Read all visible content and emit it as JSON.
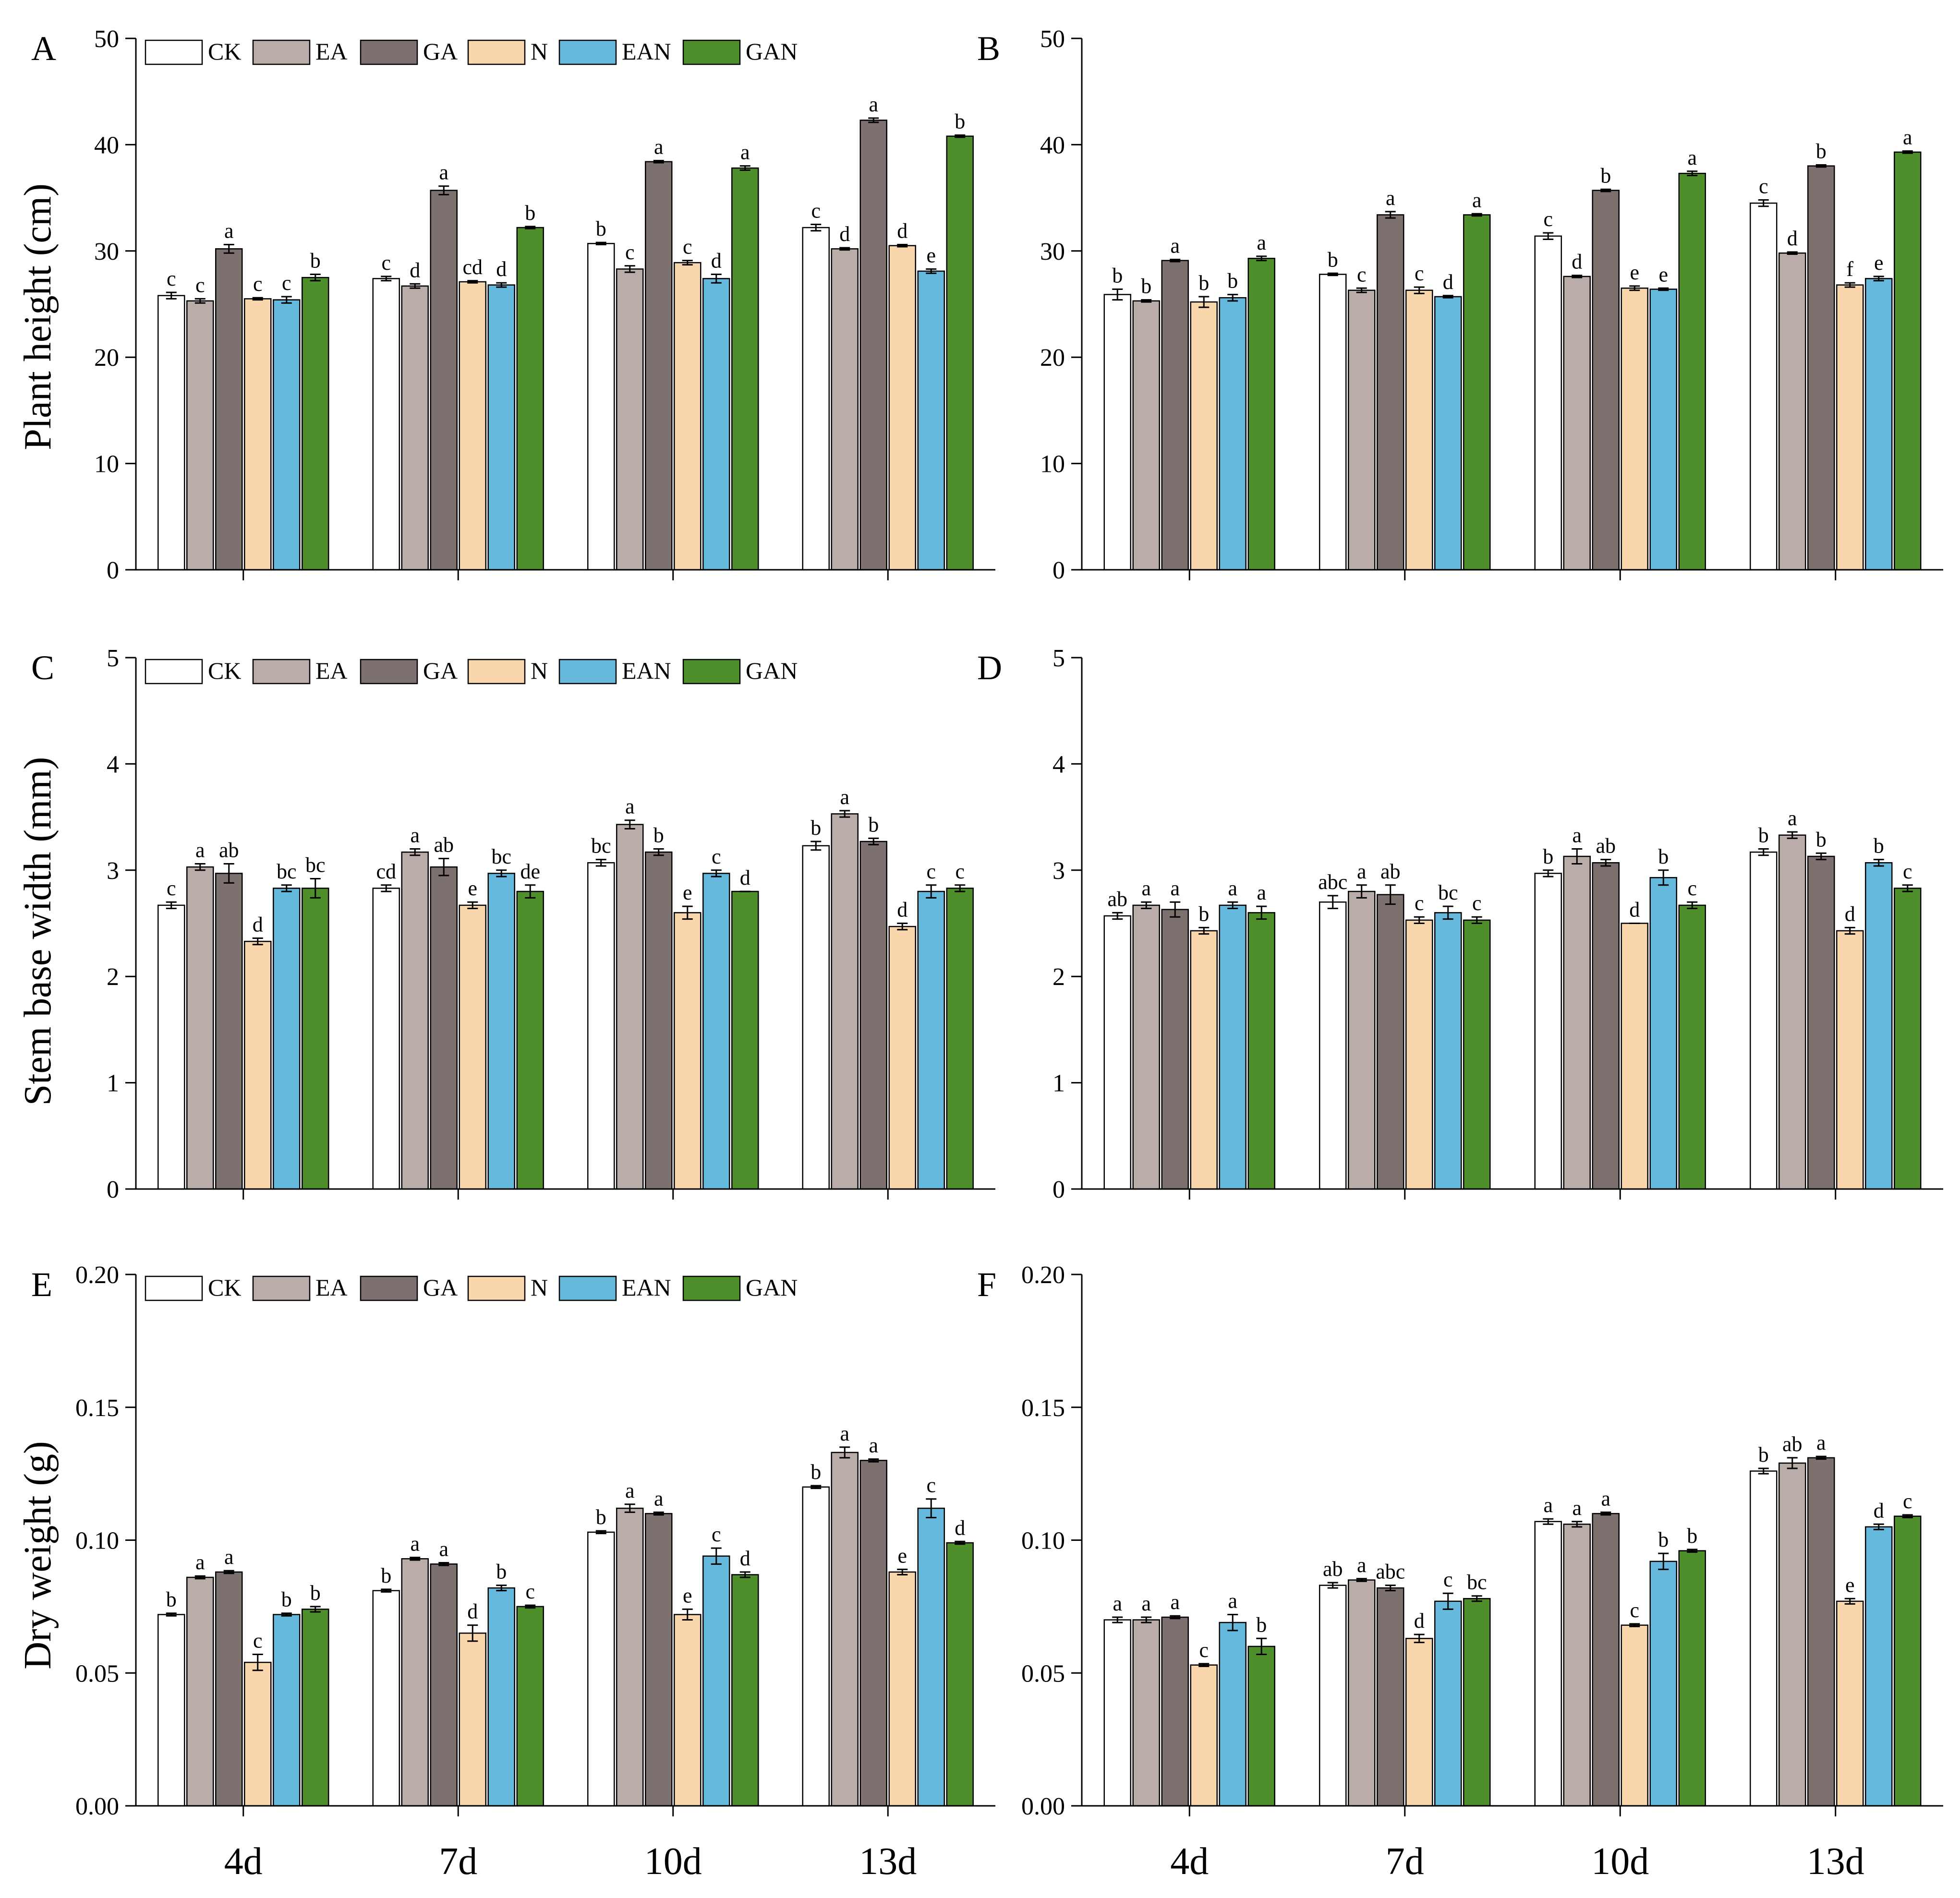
{
  "figure": {
    "x_categories": [
      "4d",
      "7d",
      "10d",
      "13d"
    ],
    "treatments": [
      "CK",
      "EA",
      "GA",
      "N",
      "EAN",
      "GAN"
    ],
    "colors": [
      "#ffffff",
      "#b9aca9",
      "#7d7170",
      "#fad6ad",
      "#65b9dd",
      "#4e8f2c"
    ],
    "row_ylabels": [
      "Plant height (cm)",
      "Stem base width  (mm)",
      "Dry weight (g)"
    ]
  },
  "chart_data": [
    {
      "panel": "A",
      "type": "bar",
      "ylabel": "Plant height (cm)",
      "ylim": [
        0,
        50
      ],
      "yticks": [
        "0",
        "10",
        "20",
        "30",
        "40",
        "50"
      ],
      "legend": true,
      "categories": [
        "4d",
        "7d",
        "10d",
        "13d"
      ],
      "series": [
        {
          "name": "CK",
          "values": [
            25.8,
            27.4,
            30.7,
            32.2
          ],
          "errors": [
            0.3,
            0.2,
            0.1,
            0.3
          ],
          "letters": [
            "c",
            "c",
            "b",
            "c"
          ]
        },
        {
          "name": "EA",
          "values": [
            25.3,
            26.7,
            28.3,
            30.2
          ],
          "errors": [
            0.2,
            0.2,
            0.3,
            0.1
          ],
          "letters": [
            "c",
            "d",
            "c",
            "d"
          ]
        },
        {
          "name": "GA",
          "values": [
            30.2,
            35.7,
            38.4,
            42.3
          ],
          "errors": [
            0.4,
            0.4,
            0.1,
            0.2
          ],
          "letters": [
            "a",
            "a",
            "a",
            "a"
          ]
        },
        {
          "name": "N",
          "values": [
            25.5,
            27.1,
            28.9,
            30.5
          ],
          "errors": [
            0.1,
            0.1,
            0.2,
            0.1
          ],
          "letters": [
            "c",
            "cd",
            "c",
            "d"
          ]
        },
        {
          "name": "EAN",
          "values": [
            25.4,
            26.8,
            27.4,
            28.1
          ],
          "errors": [
            0.3,
            0.2,
            0.4,
            0.2
          ],
          "letters": [
            "c",
            "d",
            "d",
            "e"
          ]
        },
        {
          "name": "GAN",
          "values": [
            27.5,
            32.2,
            37.8,
            40.8
          ],
          "errors": [
            0.3,
            0.1,
            0.2,
            0.1
          ],
          "letters": [
            "b",
            "b",
            "a",
            "b"
          ]
        }
      ]
    },
    {
      "panel": "B",
      "type": "bar",
      "ylabel": "",
      "ylim": [
        0,
        50
      ],
      "yticks": [
        "0",
        "10",
        "20",
        "30",
        "40",
        "50"
      ],
      "legend": false,
      "categories": [
        "4d",
        "7d",
        "10d",
        "13d"
      ],
      "series": [
        {
          "name": "CK",
          "values": [
            25.9,
            27.8,
            31.4,
            34.5
          ],
          "errors": [
            0.5,
            0.1,
            0.3,
            0.3
          ],
          "letters": [
            "b",
            "b",
            "c",
            "c"
          ]
        },
        {
          "name": "EA",
          "values": [
            25.3,
            26.3,
            27.6,
            29.8
          ],
          "errors": [
            0.1,
            0.2,
            0.1,
            0.1
          ],
          "letters": [
            "b",
            "c",
            "d",
            "d"
          ]
        },
        {
          "name": "GA",
          "values": [
            29.1,
            33.4,
            35.7,
            38.0
          ],
          "errors": [
            0.1,
            0.3,
            0.1,
            0.1
          ],
          "letters": [
            "a",
            "a",
            "b",
            "b"
          ]
        },
        {
          "name": "N",
          "values": [
            25.2,
            26.3,
            26.5,
            26.8
          ],
          "errors": [
            0.5,
            0.3,
            0.2,
            0.2
          ],
          "letters": [
            "b",
            "c",
            "e",
            "f"
          ]
        },
        {
          "name": "EAN",
          "values": [
            25.6,
            25.7,
            26.4,
            27.4
          ],
          "errors": [
            0.3,
            0.1,
            0.1,
            0.2
          ],
          "letters": [
            "b",
            "d",
            "e",
            "e"
          ]
        },
        {
          "name": "GAN",
          "values": [
            29.3,
            33.4,
            37.3,
            39.3
          ],
          "errors": [
            0.2,
            0.1,
            0.2,
            0.1
          ],
          "letters": [
            "a",
            "a",
            "a",
            "a"
          ]
        }
      ]
    },
    {
      "panel": "C",
      "type": "bar",
      "ylabel": "Stem base width  (mm)",
      "ylim": [
        0,
        5
      ],
      "yticks": [
        "0",
        "1",
        "2",
        "3",
        "4",
        "5"
      ],
      "legend": true,
      "categories": [
        "4d",
        "7d",
        "10d",
        "13d"
      ],
      "series": [
        {
          "name": "CK",
          "values": [
            2.67,
            2.83,
            3.07,
            3.23
          ],
          "errors": [
            0.03,
            0.03,
            0.03,
            0.04
          ],
          "letters": [
            "c",
            "cd",
            "bc",
            "b"
          ]
        },
        {
          "name": "EA",
          "values": [
            3.03,
            3.17,
            3.43,
            3.53
          ],
          "errors": [
            0.03,
            0.03,
            0.04,
            0.03
          ],
          "letters": [
            "a",
            "a",
            "a",
            "a"
          ]
        },
        {
          "name": "GA",
          "values": [
            2.97,
            3.03,
            3.17,
            3.27
          ],
          "errors": [
            0.09,
            0.08,
            0.03,
            0.03
          ],
          "letters": [
            "ab",
            "ab",
            "b",
            "b"
          ]
        },
        {
          "name": "N",
          "values": [
            2.33,
            2.67,
            2.6,
            2.47
          ],
          "errors": [
            0.03,
            0.03,
            0.06,
            0.03
          ],
          "letters": [
            "d",
            "e",
            "e",
            "d"
          ]
        },
        {
          "name": "EAN",
          "values": [
            2.83,
            2.97,
            2.97,
            2.8
          ],
          "errors": [
            0.03,
            0.03,
            0.03,
            0.06
          ],
          "letters": [
            "bc",
            "bc",
            "c",
            "c"
          ]
        },
        {
          "name": "GAN",
          "values": [
            2.83,
            2.8,
            2.8,
            2.83
          ],
          "errors": [
            0.09,
            0.06,
            0.0,
            0.03
          ],
          "letters": [
            "bc",
            "de",
            "d",
            "c"
          ]
        }
      ]
    },
    {
      "panel": "D",
      "type": "bar",
      "ylabel": "",
      "ylim": [
        0,
        5
      ],
      "yticks": [
        "0",
        "1",
        "2",
        "3",
        "4",
        "5"
      ],
      "legend": false,
      "categories": [
        "4d",
        "7d",
        "10d",
        "13d"
      ],
      "series": [
        {
          "name": "CK",
          "values": [
            2.57,
            2.7,
            2.97,
            3.17
          ],
          "errors": [
            0.03,
            0.06,
            0.03,
            0.03
          ],
          "letters": [
            "ab",
            "abc",
            "b",
            "b"
          ]
        },
        {
          "name": "EA",
          "values": [
            2.67,
            2.8,
            3.13,
            3.33
          ],
          "errors": [
            0.03,
            0.06,
            0.07,
            0.03
          ],
          "letters": [
            "a",
            "a",
            "a",
            "a"
          ]
        },
        {
          "name": "GA",
          "values": [
            2.63,
            2.77,
            3.07,
            3.13
          ],
          "errors": [
            0.07,
            0.09,
            0.03,
            0.03
          ],
          "letters": [
            "a",
            "ab",
            "ab",
            "b"
          ]
        },
        {
          "name": "N",
          "values": [
            2.43,
            2.53,
            2.5,
            2.43
          ],
          "errors": [
            0.03,
            0.03,
            0.0,
            0.03
          ],
          "letters": [
            "b",
            "c",
            "d",
            "d"
          ]
        },
        {
          "name": "EAN",
          "values": [
            2.67,
            2.6,
            2.93,
            3.07
          ],
          "errors": [
            0.03,
            0.06,
            0.07,
            0.03
          ],
          "letters": [
            "a",
            "bc",
            "b",
            "b"
          ]
        },
        {
          "name": "GAN",
          "values": [
            2.6,
            2.53,
            2.67,
            2.83
          ],
          "errors": [
            0.06,
            0.03,
            0.03,
            0.03
          ],
          "letters": [
            "a",
            "c",
            "c",
            "c"
          ]
        }
      ]
    },
    {
      "panel": "E",
      "type": "bar",
      "ylabel": "Dry weight (g)",
      "ylim": [
        0,
        0.2
      ],
      "yticks": [
        "0.00",
        "0.05",
        "0.10",
        "0.15",
        "0.20"
      ],
      "legend": true,
      "categories": [
        "4d",
        "7d",
        "10d",
        "13d"
      ],
      "series": [
        {
          "name": "CK",
          "values": [
            0.072,
            0.081,
            0.103,
            0.12
          ],
          "errors": [
            0.0005,
            0.0005,
            0.0005,
            0.0005
          ],
          "letters": [
            "b",
            "b",
            "b",
            "b"
          ]
        },
        {
          "name": "EA",
          "values": [
            0.086,
            0.093,
            0.112,
            0.133
          ],
          "errors": [
            0.0005,
            0.0005,
            0.0015,
            0.002
          ],
          "letters": [
            "a",
            "a",
            "a",
            "a"
          ]
        },
        {
          "name": "GA",
          "values": [
            0.088,
            0.091,
            0.11,
            0.13
          ],
          "errors": [
            0.0005,
            0.0005,
            0.0005,
            0.0005
          ],
          "letters": [
            "a",
            "a",
            "a",
            "a"
          ]
        },
        {
          "name": "N",
          "values": [
            0.054,
            0.065,
            0.072,
            0.088
          ],
          "errors": [
            0.003,
            0.003,
            0.002,
            0.001
          ],
          "letters": [
            "c",
            "d",
            "e",
            "e"
          ]
        },
        {
          "name": "EAN",
          "values": [
            0.072,
            0.082,
            0.094,
            0.112
          ],
          "errors": [
            0.0005,
            0.001,
            0.003,
            0.0035
          ],
          "letters": [
            "b",
            "b",
            "c",
            "c"
          ]
        },
        {
          "name": "GAN",
          "values": [
            0.074,
            0.075,
            0.087,
            0.099
          ],
          "errors": [
            0.001,
            0.0005,
            0.001,
            0.0005
          ],
          "letters": [
            "b",
            "c",
            "d",
            "d"
          ]
        }
      ]
    },
    {
      "panel": "F",
      "type": "bar",
      "ylabel": "",
      "ylim": [
        0,
        0.2
      ],
      "yticks": [
        "0.00",
        "0.05",
        "0.10",
        "0.15",
        "0.20"
      ],
      "legend": false,
      "categories": [
        "4d",
        "7d",
        "10d",
        "13d"
      ],
      "series": [
        {
          "name": "CK",
          "values": [
            0.07,
            0.083,
            0.107,
            0.126
          ],
          "errors": [
            0.001,
            0.001,
            0.001,
            0.001
          ],
          "letters": [
            "a",
            "ab",
            "a",
            "b"
          ]
        },
        {
          "name": "EA",
          "values": [
            0.07,
            0.085,
            0.106,
            0.129
          ],
          "errors": [
            0.001,
            0.0005,
            0.001,
            0.002
          ],
          "letters": [
            "a",
            "a",
            "a",
            "ab"
          ]
        },
        {
          "name": "GA",
          "values": [
            0.071,
            0.082,
            0.11,
            0.131
          ],
          "errors": [
            0.0005,
            0.001,
            0.0005,
            0.0005
          ],
          "letters": [
            "a",
            "abc",
            "a",
            "a"
          ]
        },
        {
          "name": "N",
          "values": [
            0.053,
            0.063,
            0.068,
            0.077
          ],
          "errors": [
            0.0005,
            0.0015,
            0.0005,
            0.001
          ],
          "letters": [
            "c",
            "d",
            "c",
            "e"
          ]
        },
        {
          "name": "EAN",
          "values": [
            0.069,
            0.077,
            0.092,
            0.105
          ],
          "errors": [
            0.003,
            0.003,
            0.003,
            0.001
          ],
          "letters": [
            "a",
            "c",
            "b",
            "d"
          ]
        },
        {
          "name": "GAN",
          "values": [
            0.06,
            0.078,
            0.096,
            0.109
          ],
          "errors": [
            0.003,
            0.001,
            0.0005,
            0.0005
          ],
          "letters": [
            "b",
            "bc",
            "b",
            "c"
          ]
        }
      ]
    }
  ]
}
